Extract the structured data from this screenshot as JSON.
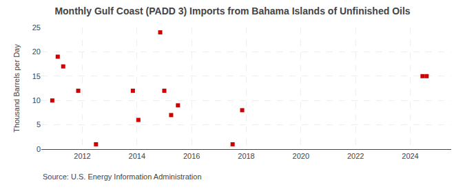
{
  "chart_data": {
    "type": "scatter",
    "title": "Monthly Gulf Coast (PADD 3) Imports from Bahama Islands of Unfinished Oils",
    "y_label": "Thousand Barrels per Day",
    "annotations": [
      "Source: U.S. Energy Information Administration"
    ],
    "x": [
      2010.9,
      2011.1,
      2011.3,
      2011.85,
      2012.5,
      2013.85,
      2014.05,
      2014.85,
      2015.0,
      2015.25,
      2015.5,
      2017.5,
      2017.85,
      2024.45,
      2024.6
    ],
    "values": [
      10,
      19,
      17,
      12,
      1,
      12,
      6,
      24,
      12,
      7,
      9,
      1,
      8,
      15,
      15
    ],
    "color": "#cc0000",
    "marker": "square",
    "xlim": [
      2010.5,
      2025.5
    ],
    "xticks": [
      2012,
      2014,
      2016,
      2018,
      2020,
      2022,
      2024
    ],
    "ylim": [
      0,
      25
    ],
    "yticks": [
      0,
      5,
      10,
      15,
      20,
      25
    ],
    "grid": true
  }
}
